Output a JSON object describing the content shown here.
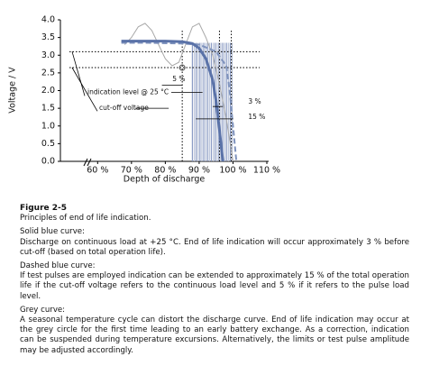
{
  "chart_data": {
    "type": "line",
    "xlabel": "Depth of discharge",
    "ylabel": "Voltage / V",
    "xlim": [
      49,
      110
    ],
    "ylim": [
      0,
      4
    ],
    "xticks": [
      {
        "value": 60,
        "label": "60 %"
      },
      {
        "value": 70,
        "label": "70 %"
      },
      {
        "value": 80,
        "label": "80 %"
      },
      {
        "value": 90,
        "label": "90 %"
      },
      {
        "value": 100,
        "label": "100 %"
      },
      {
        "value": 110,
        "label": "110 %"
      }
    ],
    "yticks": [
      {
        "value": 0,
        "label": "0.0"
      },
      {
        "value": 0.5,
        "label": "0.5"
      },
      {
        "value": 1,
        "label": "1.0"
      },
      {
        "value": 1.5,
        "label": "1.5"
      },
      {
        "value": 2,
        "label": "2.0"
      },
      {
        "value": 2.5,
        "label": "2.5"
      },
      {
        "value": 3,
        "label": "3.0"
      },
      {
        "value": 3.5,
        "label": "3.5"
      },
      {
        "value": 4,
        "label": "4.0"
      }
    ],
    "series": [
      {
        "color": "#a8a8a8",
        "dash": false,
        "width": 1,
        "x": [
          68,
          70,
          72,
          74,
          76,
          78,
          80,
          82,
          84,
          86,
          88,
          90,
          92,
          94,
          96,
          98,
          100
        ],
        "values": [
          3.3,
          3.5,
          3.8,
          3.9,
          3.7,
          3.3,
          2.9,
          2.7,
          2.8,
          3.3,
          3.8,
          3.9,
          3.5,
          3.0,
          2.2,
          1.2,
          0
        ]
      },
      {
        "color": "#7f93bd",
        "dash": true,
        "width": 2,
        "x": [
          67,
          75,
          85,
          90,
          95,
          98,
          99,
          100,
          101
        ],
        "values": [
          3.35,
          3.35,
          3.33,
          3.3,
          3.1,
          2.7,
          2.0,
          1.0,
          0
        ]
      },
      {
        "color": "#5a72a8",
        "dash": false,
        "width": 3,
        "x": [
          67,
          70,
          75,
          80,
          85,
          88,
          90,
          92,
          94,
          95,
          96,
          97
        ],
        "values": [
          3.4,
          3.4,
          3.4,
          3.4,
          3.38,
          3.33,
          3.2,
          2.9,
          2.3,
          1.7,
          0.9,
          0
        ]
      }
    ],
    "hlines": [
      3.1,
      2.65
    ],
    "vlines": [
      85,
      96,
      99.5
    ],
    "annotations": [
      "5 %",
      "3 %",
      "15 %",
      "indication level @ 25 °C",
      "cut-off voltage"
    ]
  },
  "caption": {
    "figure": "Figure 2-5",
    "title": "Principles of end of life indication.",
    "sections": [
      {
        "heading": "Solid blue curve:",
        "text": "Discharge on continuous load at +25 °C. End of life indication will occur approximately 3 % before cut-off (based on total operation life)."
      },
      {
        "heading": "Dashed blue curve:",
        "text": "If test pulses are employed indication can be extended to approximately 15 % of the total operation life if the cut-off voltage refers to the continuous load level and 5 % if it refers to the pulse load level."
      },
      {
        "heading": "Grey curve:",
        "text": "A seasonal temperature cycle can distort the discharge curve. End of life indication may occur at the grey circle for the first time leading to an early battery exchange. As a correction, indication can be suspended during temperature excursions. Alternatively, the limits or test pulse amplitude may be adjusted accordingly."
      }
    ]
  }
}
